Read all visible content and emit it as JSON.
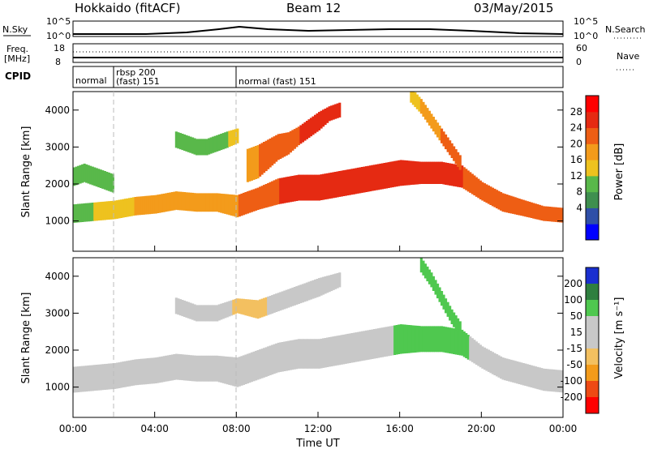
{
  "header": {
    "radar_title": "Hokkaido (fitACF)",
    "beam_title": "Beam 12",
    "date": "03/May/2015"
  },
  "strip": {
    "nsky_label": "N.Sky",
    "nsky_ticks": [
      "10^5",
      "10^0"
    ],
    "nsearch_label": "N.Search",
    "nsearch_ticks": [
      "10^5",
      "10^0"
    ],
    "freq_label": "Freq.",
    "freq_unit": "[MHz]",
    "freq_ticks": [
      "18",
      "8"
    ],
    "nave_label": "Nave",
    "nave_ticks": [
      "60",
      "0"
    ],
    "cpid_label": "CPID",
    "cpid_segments": [
      {
        "text": "normal",
        "start_hour": 0.0
      },
      {
        "text": "rbsp 200",
        "start_hour": 2.0
      },
      {
        "text": "(fast) 151",
        "start_hour": 2.0
      },
      {
        "text": "normal (fast)  151",
        "start_hour": 8.0
      }
    ]
  },
  "colors": {
    "power": [
      "#0000ff",
      "#2f4fa8",
      "#3f8f4f",
      "#59b84a",
      "#eec21f",
      "#f39b1b",
      "#ee5e14",
      "#e52a12",
      "#ff0000"
    ],
    "velocity": [
      "#1a2fd0",
      "#2f7f3f",
      "#4fc84f",
      "#c8c8c8",
      "#c8c8c8",
      "#f3c060",
      "#f39b1b",
      "#ee4a14",
      "#ff0000"
    ],
    "dashed": "#bbbbbb"
  },
  "x_axis": {
    "label": "Time UT",
    "ticks": [
      "00:00",
      "04:00",
      "08:00",
      "12:00",
      "16:00",
      "20:00",
      "00:00"
    ]
  },
  "panels": {
    "y_label": "Slant Range [km]",
    "y_ticks": [
      "4000",
      "3000",
      "2000",
      "1000"
    ],
    "power_bar_label": "Power [dB]",
    "power_bar_ticks": [
      "28",
      "24",
      "20",
      "16",
      "12",
      "8",
      "4"
    ],
    "velocity_bar_label": "Velocity [m s⁻¹]",
    "velocity_bar_ticks": [
      "200",
      "100",
      "50",
      "15",
      "-15",
      "-50",
      "-100",
      "-200"
    ]
  },
  "chart_data": [
    {
      "type": "heatmap",
      "quantity": "Power",
      "unit": "dB",
      "x_range_hours": [
        0,
        24
      ],
      "y_range_km": [
        180,
        4500
      ],
      "color_range": [
        0,
        32
      ],
      "bands": [
        {
          "hours": [
            0,
            1,
            2,
            3,
            4,
            5,
            6,
            7,
            8,
            9,
            10,
            11,
            12,
            13,
            14,
            15,
            16,
            17,
            18,
            19,
            20,
            21,
            22,
            23,
            24
          ],
          "center_km": [
            1200,
            1250,
            1300,
            1400,
            1450,
            1550,
            1500,
            1500,
            1400,
            1600,
            1800,
            1900,
            1900,
            2000,
            2100,
            2200,
            2300,
            2300,
            2300,
            2200,
            1800,
            1500,
            1350,
            1200,
            1150
          ],
          "half_width_km": [
            250,
            250,
            250,
            250,
            250,
            250,
            250,
            250,
            300,
            300,
            350,
            350,
            350,
            350,
            350,
            350,
            350,
            300,
            300,
            300,
            250,
            250,
            220,
            200,
            200
          ],
          "power_db": [
            14,
            16,
            18,
            20,
            22,
            22,
            22,
            22,
            24,
            26,
            28,
            28,
            28,
            28,
            30,
            30,
            30,
            28,
            28,
            28,
            26,
            24,
            24,
            24,
            24
          ]
        },
        {
          "hours": [
            0,
            0.5,
            1,
            1.5,
            2
          ],
          "center_km": [
            2200,
            2300,
            2200,
            2100,
            2000
          ],
          "half_width_km": [
            250,
            250,
            250,
            250,
            250
          ],
          "power_db": [
            12,
            14,
            14,
            12,
            12
          ]
        },
        {
          "hours": [
            5,
            5.5,
            6,
            6.5,
            7,
            7.5,
            8
          ],
          "center_km": [
            3200,
            3100,
            3000,
            3000,
            3100,
            3200,
            3300
          ],
          "half_width_km": [
            220,
            220,
            220,
            220,
            220,
            220,
            200
          ],
          "power_db": [
            12,
            12,
            14,
            14,
            14,
            16,
            18
          ]
        },
        {
          "hours": [
            8.5,
            9,
            9.5,
            10,
            10.5,
            11,
            11.5,
            12,
            12.5,
            13
          ],
          "center_km": [
            2500,
            2600,
            2800,
            3000,
            3100,
            3300,
            3500,
            3700,
            3900,
            4000
          ],
          "half_width_km": [
            450,
            450,
            400,
            350,
            300,
            250,
            250,
            250,
            200,
            200
          ],
          "power_db": [
            22,
            24,
            24,
            26,
            26,
            28,
            28,
            28,
            28,
            28
          ]
        },
        {
          "hours": [
            16.5,
            17,
            17.5,
            18,
            18.5,
            19
          ],
          "center_km": [
            4400,
            4100,
            3700,
            3300,
            2900,
            2500
          ],
          "half_width_km": [
            200,
            200,
            200,
            200,
            200,
            200
          ],
          "power_db": [
            16,
            20,
            22,
            24,
            24,
            24
          ]
        }
      ]
    },
    {
      "type": "heatmap",
      "quantity": "Velocity",
      "unit": "m s^-1",
      "x_range_hours": [
        0,
        24
      ],
      "y_range_km": [
        180,
        4500
      ],
      "color_range": [
        -200,
        200
      ],
      "bands": [
        {
          "hours": [
            0,
            1,
            2,
            3,
            4,
            5,
            6,
            7,
            8,
            9,
            10,
            11,
            12,
            13,
            14,
            15,
            16,
            17,
            18,
            19,
            20,
            21,
            22,
            23,
            24
          ],
          "center_km": [
            1200,
            1250,
            1300,
            1400,
            1450,
            1550,
            1500,
            1500,
            1400,
            1600,
            1800,
            1900,
            1900,
            2000,
            2100,
            2200,
            2300,
            2300,
            2300,
            2200,
            1800,
            1500,
            1350,
            1200,
            1150
          ],
          "half_width_km": [
            350,
            350,
            350,
            350,
            350,
            350,
            350,
            350,
            400,
            400,
            400,
            400,
            400,
            400,
            400,
            400,
            400,
            350,
            350,
            350,
            300,
            300,
            300,
            300,
            300
          ],
          "velocity_ms": [
            0,
            0,
            0,
            0,
            0,
            0,
            0,
            0,
            0,
            0,
            0,
            0,
            0,
            0,
            0,
            0,
            30,
            40,
            40,
            30,
            0,
            0,
            0,
            0,
            0
          ]
        },
        {
          "hours": [
            5,
            6,
            7,
            8,
            9,
            10,
            11,
            12,
            13
          ],
          "center_km": [
            3200,
            3000,
            3000,
            3200,
            3100,
            3300,
            3500,
            3700,
            3900
          ],
          "half_width_km": [
            220,
            220,
            220,
            200,
            250,
            250,
            250,
            250,
            200
          ],
          "velocity_ms": [
            0,
            0,
            0,
            -20,
            -25,
            0,
            0,
            0,
            0
          ]
        },
        {
          "hours": [
            17,
            17.5,
            18,
            18.5,
            19
          ],
          "center_km": [
            4300,
            3900,
            3400,
            2900,
            2500
          ],
          "half_width_km": [
            200,
            200,
            200,
            200,
            200
          ],
          "velocity_ms": [
            40,
            45,
            45,
            40,
            40
          ]
        }
      ]
    }
  ]
}
